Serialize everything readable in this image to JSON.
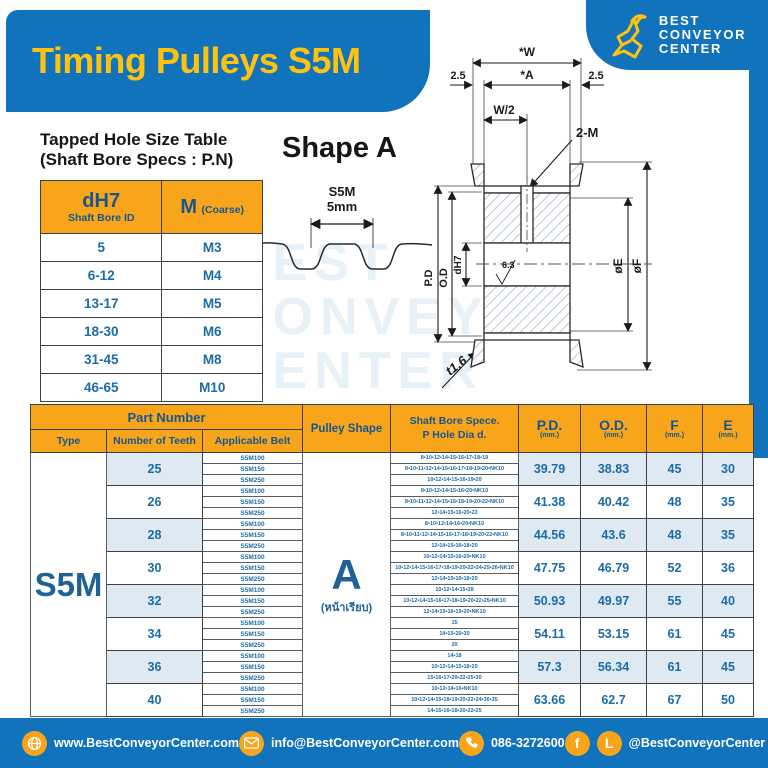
{
  "header": {
    "title": "Timing Pulleys S5M",
    "logo": {
      "line1": "BEST",
      "line2": "CONVEYOR",
      "line3": "CENTER"
    }
  },
  "watermark": {
    "line1": "BEST",
    "line2": "CONVEYOR",
    "line3": "CENTER"
  },
  "tapped_hole_table": {
    "title_line1": "Tapped Hole Size Table",
    "title_line2": "(Shaft Bore Specs : P.N)",
    "col1_main": "dH7",
    "col1_sub": "Shaft Bore ID",
    "col2_main": "M",
    "col2_sub": "(Coarse)",
    "rows": [
      {
        "bore": "5",
        "m": "M3"
      },
      {
        "bore": "6-12",
        "m": "M4"
      },
      {
        "bore": "13-17",
        "m": "M5"
      },
      {
        "bore": "18-30",
        "m": "M6"
      },
      {
        "bore": "31-45",
        "m": "M8"
      },
      {
        "bore": "46-65",
        "m": "M10"
      }
    ]
  },
  "shape_section": {
    "title": "Shape A",
    "profile_label1": "S5M",
    "profile_label2": "5mm"
  },
  "drawing_labels": {
    "w": "*W",
    "a": "*A",
    "left_offset": "2.5",
    "right_offset": "2.5",
    "w_half": "W/2",
    "tap": "2-M",
    "pd": "P.D",
    "od": "O.D",
    "bore": "dH7",
    "roughness": "6.3",
    "dia_e": "øE",
    "dia_f": "øF",
    "flange_t": "t1.6"
  },
  "main_table": {
    "headers": {
      "part_number": "Part Number",
      "type": "Type",
      "teeth": "Number of Teeth",
      "belt": "Applicable Belt",
      "shape": "Pulley Shape",
      "bore_line1": "Shaft Bore Spece.",
      "bore_line2": "P Hole Dia d.",
      "pd": "P.D.",
      "od": "O.D.",
      "f": "F",
      "e": "E",
      "unit": "(mm.)"
    },
    "type": "S5M",
    "pulley_shape_letter": "A",
    "pulley_shape_sub": "(หน้าเรียบ)",
    "rows": [
      {
        "teeth": "25",
        "belts": [
          "S5M100",
          "S5M150",
          "S5M250"
        ],
        "bores": [
          "8•10•12•14•15•16•17•18•19",
          "8•10•11•12•14•15•16•17•18•19•20•NK10",
          "10•12•14•15•16•19•20"
        ],
        "pd": "39.79",
        "od": "38.83",
        "f": "45",
        "e": "30"
      },
      {
        "teeth": "26",
        "belts": [
          "S5M100",
          "S5M150",
          "S5M250"
        ],
        "bores": [
          "8•10•12•14•15•16•20•NK10",
          "8•10•11•12•14•15•16•18•19•20•22•NK10",
          "12•14•15•16•20•22"
        ],
        "pd": "41.38",
        "od": "40.42",
        "f": "48",
        "e": "35"
      },
      {
        "teeth": "28",
        "belts": [
          "S5M100",
          "S5M150",
          "S5M250"
        ],
        "bores": [
          "8•10•12•14•16•20•NK10",
          "8•10•11•12•14•15•16•17•18•19•20•22•NK10",
          "12•14•15•16•18•20"
        ],
        "pd": "44.56",
        "od": "43.6",
        "f": "48",
        "e": "35"
      },
      {
        "teeth": "30",
        "belts": [
          "S5M100",
          "S5M150",
          "S5M250"
        ],
        "bores": [
          "10•12•14•15•16•20•NK10",
          "10•12•14•15•16•17•18•19•20•22•24•25•26•NK10",
          "12•14•15•16•18•20"
        ],
        "pd": "47.75",
        "od": "46.79",
        "f": "52",
        "e": "36"
      },
      {
        "teeth": "32",
        "belts": [
          "S5M100",
          "S5M150",
          "S5M250"
        ],
        "bores": [
          "10•12•14•15•28",
          "10•12•14•15•16•17•18•19•20•22•25•NK10",
          "12•14•15•16•19•20•NK10"
        ],
        "pd": "50.93",
        "od": "49.97",
        "f": "55",
        "e": "40"
      },
      {
        "teeth": "34",
        "belts": [
          "S5M100",
          "S5M150",
          "S5M250"
        ],
        "bores": [
          "15",
          "14•15•20•30",
          "20"
        ],
        "pd": "54.11",
        "od": "53.15",
        "f": "61",
        "e": "45"
      },
      {
        "teeth": "36",
        "belts": [
          "S5M100",
          "S5M150",
          "S5M250"
        ],
        "bores": [
          "14•18",
          "10•12•14•15•18•20",
          "15•16•17•20•22•25•30"
        ],
        "pd": "57.3",
        "od": "56.34",
        "f": "61",
        "e": "45"
      },
      {
        "teeth": "40",
        "belts": [
          "S5M100",
          "S5M150",
          "S5M250"
        ],
        "bores": [
          "10•12•14•16•NK10",
          "10•12•14•15•18•19•20•22•24•30•35",
          "14•15•16•18•20•22•25"
        ],
        "pd": "63.66",
        "od": "62.7",
        "f": "67",
        "e": "50"
      }
    ]
  },
  "footer": {
    "website": "www.BestConveyorCenter.com",
    "email": "info@BestConveyorCenter.com",
    "phone": "086-3272600",
    "social": "@BestConveyorCenter"
  },
  "colors": {
    "blue": "#1173BC",
    "yellow": "#F9A51B",
    "title_yellow": "#FFC20E",
    "text_blue": "#1C6CA6",
    "alt_row": "#DFE9F2"
  }
}
